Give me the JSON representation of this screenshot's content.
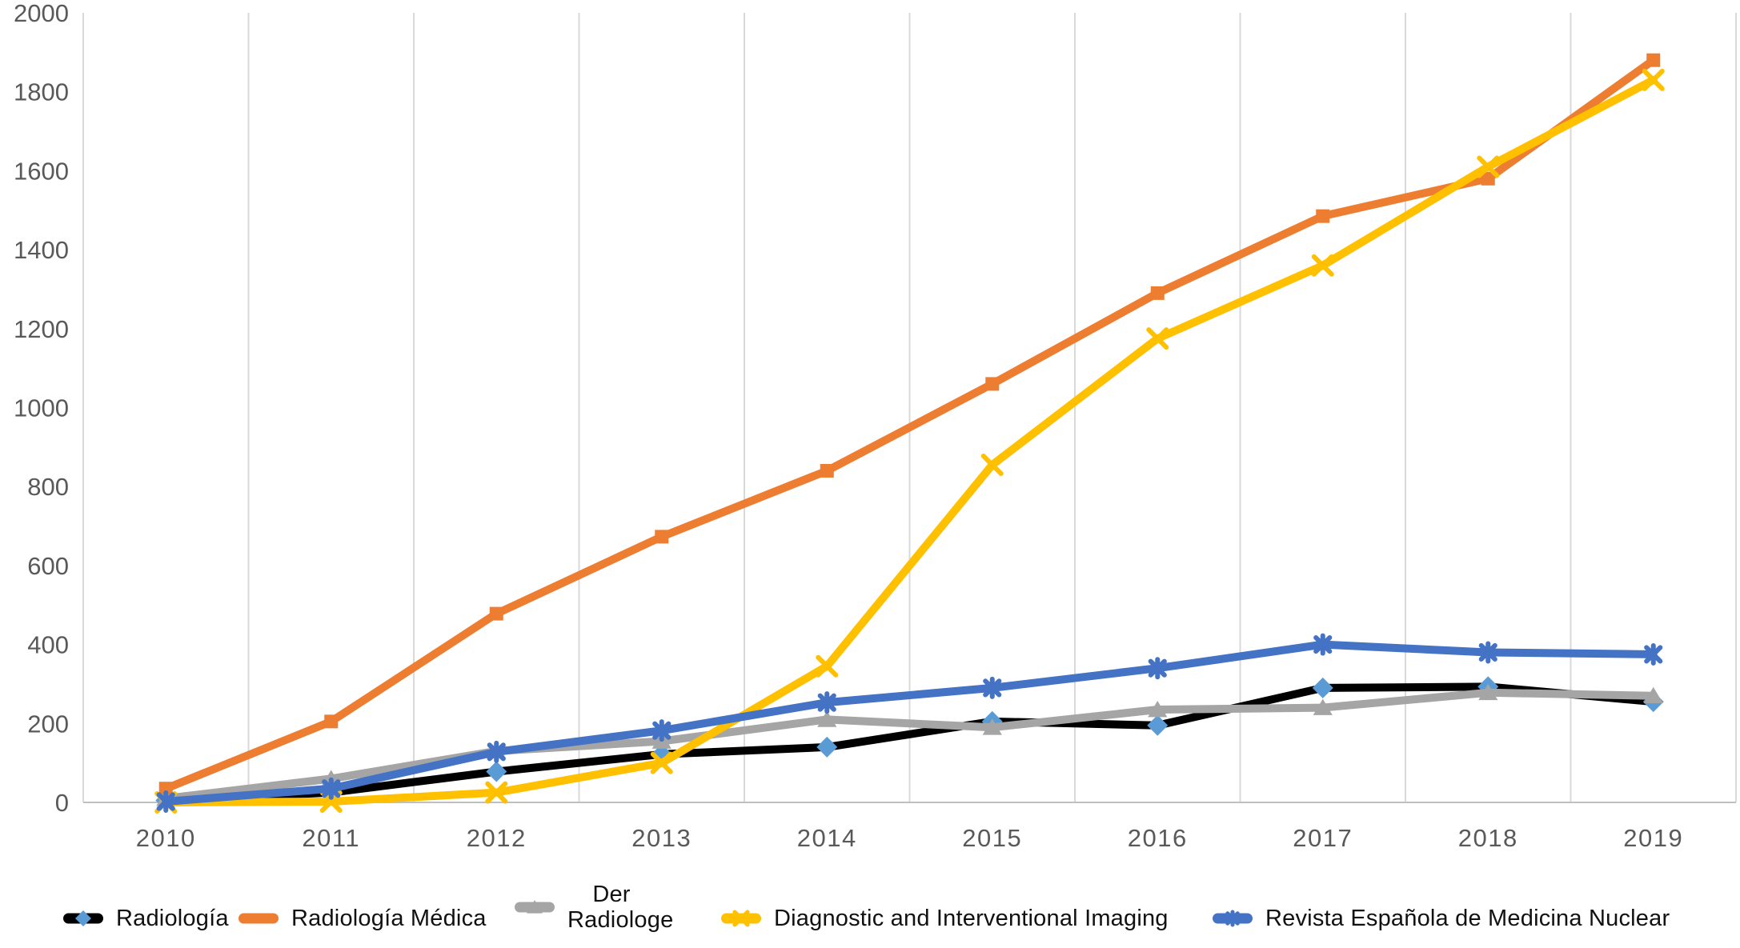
{
  "chart_data": {
    "type": "line",
    "title": "",
    "xlabel": "",
    "ylabel": "",
    "categories": [
      "2010",
      "2011",
      "2012",
      "2013",
      "2014",
      "2015",
      "2016",
      "2017",
      "2018",
      "2019"
    ],
    "yticks": [
      0,
      200,
      400,
      600,
      800,
      1000,
      1200,
      1400,
      1600,
      1800,
      2000
    ],
    "ylim": [
      0,
      2000
    ],
    "grid": "vertical-between-categories",
    "legend_position": "bottom",
    "series": [
      {
        "name": "Radiología",
        "color": "#000000",
        "marker": "diamond",
        "marker_color": "#5B9BD5",
        "values": [
          5,
          25,
          78,
          122,
          140,
          205,
          195,
          290,
          293,
          255
        ]
      },
      {
        "name": "Radiología Médica",
        "color": "#ED7D31",
        "marker": "square",
        "marker_color": "#ED7D31",
        "values": [
          35,
          205,
          478,
          673,
          840,
          1060,
          1290,
          1485,
          1580,
          1880
        ]
      },
      {
        "name": "Der Radiologe",
        "color": "#A5A5A5",
        "marker": "triangle",
        "marker_color": "#A5A5A5",
        "values": [
          10,
          60,
          130,
          155,
          210,
          190,
          235,
          240,
          278,
          270
        ]
      },
      {
        "name": "Diagnostic and Interventional Imaging",
        "color": "#FFC000",
        "marker": "x",
        "marker_color": "#FFC000",
        "values": [
          0,
          2,
          25,
          100,
          345,
          855,
          1175,
          1360,
          1610,
          1830
        ]
      },
      {
        "name": "Revista Española de Medicina Nuclear",
        "color": "#4472C4",
        "marker": "asterisk",
        "marker_color": "#4472C4",
        "values": [
          2,
          35,
          128,
          182,
          253,
          290,
          340,
          400,
          380,
          375
        ]
      }
    ],
    "colors": {
      "gridline": "#D9D9D9",
      "axis_line": "#BFBFBF",
      "tick_label": "#595959"
    }
  }
}
